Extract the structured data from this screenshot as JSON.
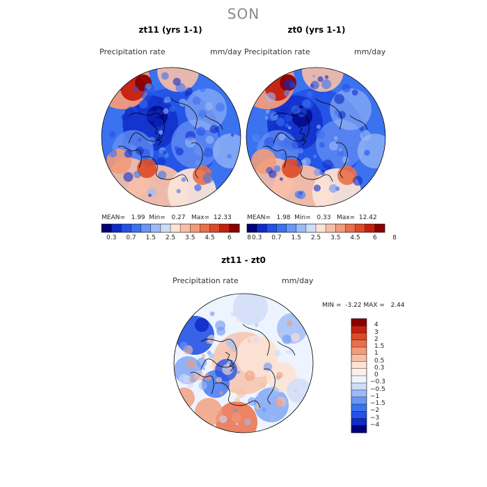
{
  "season": "SON",
  "colors": {
    "pos_scale": [
      "#00007a",
      "#0f2cc8",
      "#2452e6",
      "#3b72f0",
      "#6a96f4",
      "#9cbaf6",
      "#cfdcf8",
      "#fbe3d6",
      "#f8bfa6",
      "#f29b7a",
      "#ea6f4a",
      "#dd4a27",
      "#c5200e",
      "#8a0000"
    ],
    "diff_scale": [
      "#00007a",
      "#0f2cc8",
      "#2452e6",
      "#3b72f0",
      "#6a96f4",
      "#9cbaf6",
      "#cfdcf8",
      "#eef4ff",
      "#fdf0e6",
      "#fbe3d6",
      "#f8bfa6",
      "#f29b7a",
      "#ea6f4a",
      "#dd4a27",
      "#c5200e",
      "#8a0000"
    ]
  },
  "panel1": {
    "title": "zt11 (yrs 1-1)",
    "var_label": "Precipitation rate",
    "units": "mm/day",
    "mean_label": "MEAN=",
    "mean_value": "1.99",
    "min_label": "Min=",
    "min_value": "0.27",
    "max_label": "Max=",
    "max_value": "12.33",
    "ticks": [
      "0.3",
      "0.7",
      "1.5",
      "2.5",
      "3.5",
      "4.5",
      "6",
      "8"
    ]
  },
  "panel2": {
    "title": "zt0 (yrs 1-1)",
    "var_label": "Precipitation rate",
    "units": "mm/day",
    "mean_label": "MEAN=",
    "mean_value": "1.98",
    "min_label": "Min=",
    "min_value": "0.33",
    "max_label": "Max=",
    "max_value": "12.42",
    "ticks": [
      "0.3",
      "0.7",
      "1.5",
      "2.5",
      "3.5",
      "4.5",
      "6",
      "8"
    ]
  },
  "panel3": {
    "title": "zt11 - zt0",
    "var_label": "Precipitation rate",
    "units": "mm/day",
    "min_label": "MIN =",
    "min_value": "-3.22",
    "max_label": "MAX =",
    "max_value": "2.44",
    "ticks": [
      "4",
      "3",
      "2",
      "1.5",
      "1",
      "0.5",
      "0.3",
      "0",
      "-0.3",
      "-0.5",
      "-1",
      "-1.5",
      "-2",
      "-3",
      "-4"
    ]
  }
}
